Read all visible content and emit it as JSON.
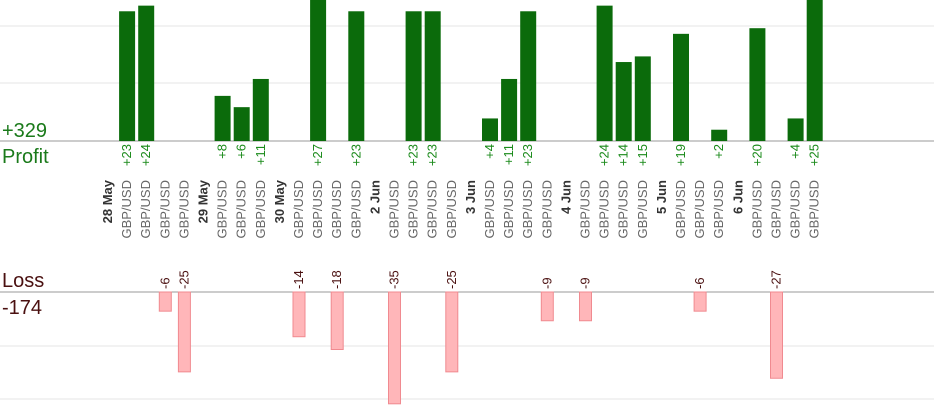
{
  "chart_data": {
    "type": "bar",
    "profit_label": "Profit",
    "profit_total": "+329",
    "loss_label": "Loss",
    "loss_total": "-174",
    "colors": {
      "profit": "#0b6b0b",
      "loss": "#ffb6b9",
      "loss_border": "#f08a90"
    },
    "ylim_profit": [
      0,
      25
    ],
    "ylim_loss": [
      0,
      36
    ],
    "columns": [
      {
        "kind": "date",
        "label": "28 May"
      },
      {
        "kind": "trade",
        "label": "GBP/USD",
        "profit": 23
      },
      {
        "kind": "trade",
        "label": "GBP/USD",
        "profit": 24
      },
      {
        "kind": "trade",
        "label": "GBP/USD",
        "loss": -6
      },
      {
        "kind": "trade",
        "label": "GBP/USD",
        "loss": -25
      },
      {
        "kind": "date",
        "label": "29 May"
      },
      {
        "kind": "trade",
        "label": "GBP/USD",
        "profit": 8
      },
      {
        "kind": "trade",
        "label": "GBP/USD",
        "profit": 6
      },
      {
        "kind": "trade",
        "label": "GBP/USD",
        "profit": 11
      },
      {
        "kind": "date",
        "label": "30 May"
      },
      {
        "kind": "trade",
        "label": "GBP/USD",
        "loss": -14
      },
      {
        "kind": "trade",
        "label": "GBP/USD",
        "profit": 27
      },
      {
        "kind": "trade",
        "label": "GBP/USD",
        "loss": -18
      },
      {
        "kind": "trade",
        "label": "GBP/USD",
        "profit": 23
      },
      {
        "kind": "date",
        "label": "2 Jun"
      },
      {
        "kind": "trade",
        "label": "GBP/USD",
        "loss": -35
      },
      {
        "kind": "trade",
        "label": "GBP/USD",
        "profit": 23
      },
      {
        "kind": "trade",
        "label": "GBP/USD",
        "profit": 23
      },
      {
        "kind": "trade",
        "label": "GBP/USD",
        "loss": -25
      },
      {
        "kind": "date",
        "label": "3 Jun"
      },
      {
        "kind": "trade",
        "label": "GBP/USD",
        "profit": 4
      },
      {
        "kind": "trade",
        "label": "GBP/USD",
        "profit": 11
      },
      {
        "kind": "trade",
        "label": "GBP/USD",
        "profit": 23
      },
      {
        "kind": "trade",
        "label": "GBP/USD",
        "loss": -9
      },
      {
        "kind": "date",
        "label": "4 Jun"
      },
      {
        "kind": "trade",
        "label": "GBP/USD",
        "loss": -9
      },
      {
        "kind": "trade",
        "label": "GBP/USD",
        "profit": 24
      },
      {
        "kind": "trade",
        "label": "GBP/USD",
        "profit": 14
      },
      {
        "kind": "trade",
        "label": "GBP/USD",
        "profit": 15
      },
      {
        "kind": "date",
        "label": "5 Jun"
      },
      {
        "kind": "trade",
        "label": "GBP/USD",
        "profit": 19
      },
      {
        "kind": "trade",
        "label": "GBP/USD",
        "loss": -6
      },
      {
        "kind": "trade",
        "label": "GBP/USD",
        "profit": 2
      },
      {
        "kind": "date",
        "label": "6 Jun"
      },
      {
        "kind": "trade",
        "label": "GBP/USD",
        "profit": 20
      },
      {
        "kind": "trade",
        "label": "GBP/USD",
        "loss": -27
      },
      {
        "kind": "trade",
        "label": "GBP/USD",
        "profit": 4
      },
      {
        "kind": "trade",
        "label": "GBP/USD",
        "profit": 25
      }
    ]
  }
}
